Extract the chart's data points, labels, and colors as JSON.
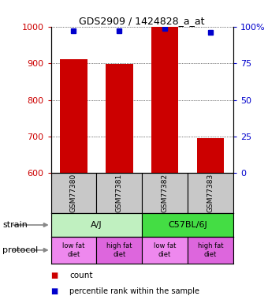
{
  "title": "GDS2909 / 1424828_a_at",
  "samples": [
    "GSM77380",
    "GSM77381",
    "GSM77382",
    "GSM77383"
  ],
  "bar_bottoms": [
    600,
    600,
    600,
    600
  ],
  "bar_tops": [
    912,
    898,
    1000,
    695
  ],
  "bar_color": "#cc0000",
  "bar_width": 0.6,
  "percentile_values": [
    97,
    97,
    99,
    96
  ],
  "percentile_color": "#0000cc",
  "ylim_left": [
    600,
    1000
  ],
  "ylim_right": [
    0,
    100
  ],
  "yticks_left": [
    600,
    700,
    800,
    900,
    1000
  ],
  "yticks_right": [
    0,
    25,
    50,
    75,
    100
  ],
  "ytick_labels_right": [
    "0",
    "25",
    "50",
    "75",
    "100%"
  ],
  "strain_labels": [
    "A/J",
    "C57BL/6J"
  ],
  "strain_colors": [
    "#c0f0c0",
    "#44dd44"
  ],
  "protocol_labels": [
    "low fat\ndiet",
    "high fat\ndiet",
    "low fat\ndiet",
    "high fat\ndiet"
  ],
  "protocol_colors": [
    "#ee88ee",
    "#dd66dd",
    "#ee88ee",
    "#dd66dd"
  ],
  "sample_box_color": "#c8c8c8",
  "legend_count_color": "#cc0000",
  "legend_percentile_color": "#0000cc",
  "fig_width": 3.4,
  "fig_height": 3.75
}
